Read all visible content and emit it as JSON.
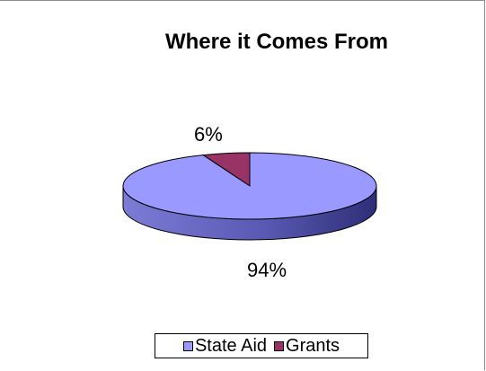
{
  "chart_data": {
    "type": "pie",
    "title": "Where it Comes From",
    "slices": [
      {
        "name": "State Aid",
        "value": 94,
        "label": "94%",
        "color": "#9999ff"
      },
      {
        "name": "Grants",
        "value": 6,
        "label": "6%",
        "color": "#993366"
      }
    ],
    "legend_position": "bottom",
    "style": "3d"
  }
}
